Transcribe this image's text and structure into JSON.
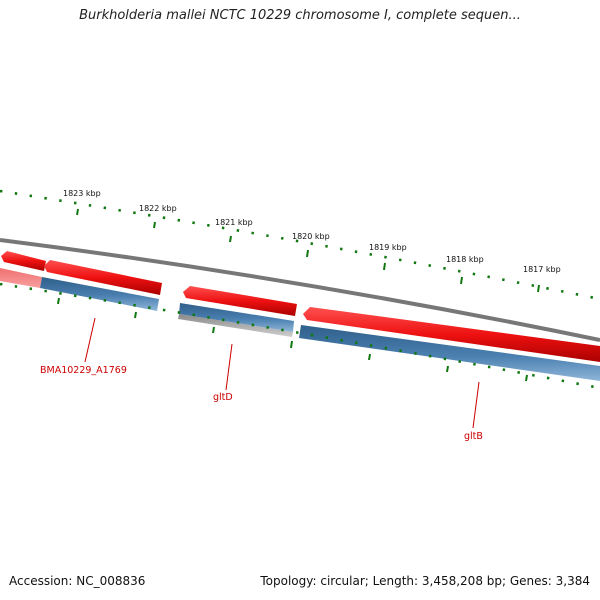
{
  "title": "Burkholderia mallei NCTC 10229 chromosome I, complete sequen...",
  "accession": "Accession: NC_008836",
  "summary": "Topology: circular; Length: 3,458,208 bp; Genes: 3,384",
  "scale_labels": [
    "1823 kbp",
    "1822 kbp",
    "1821 kbp",
    "1820 kbp",
    "1819 kbp",
    "1818 kbp",
    "1817 kbp"
  ],
  "genes": [
    {
      "label": "BMA10229_A1769"
    },
    {
      "label": "gltD"
    },
    {
      "label": "gltB"
    }
  ],
  "colors": {
    "forward_cds": "#ee1111",
    "reverse_gene": "#4a7fb0",
    "backbone": "#777777",
    "tick": "#117711",
    "gene_label": "#cc0000"
  }
}
